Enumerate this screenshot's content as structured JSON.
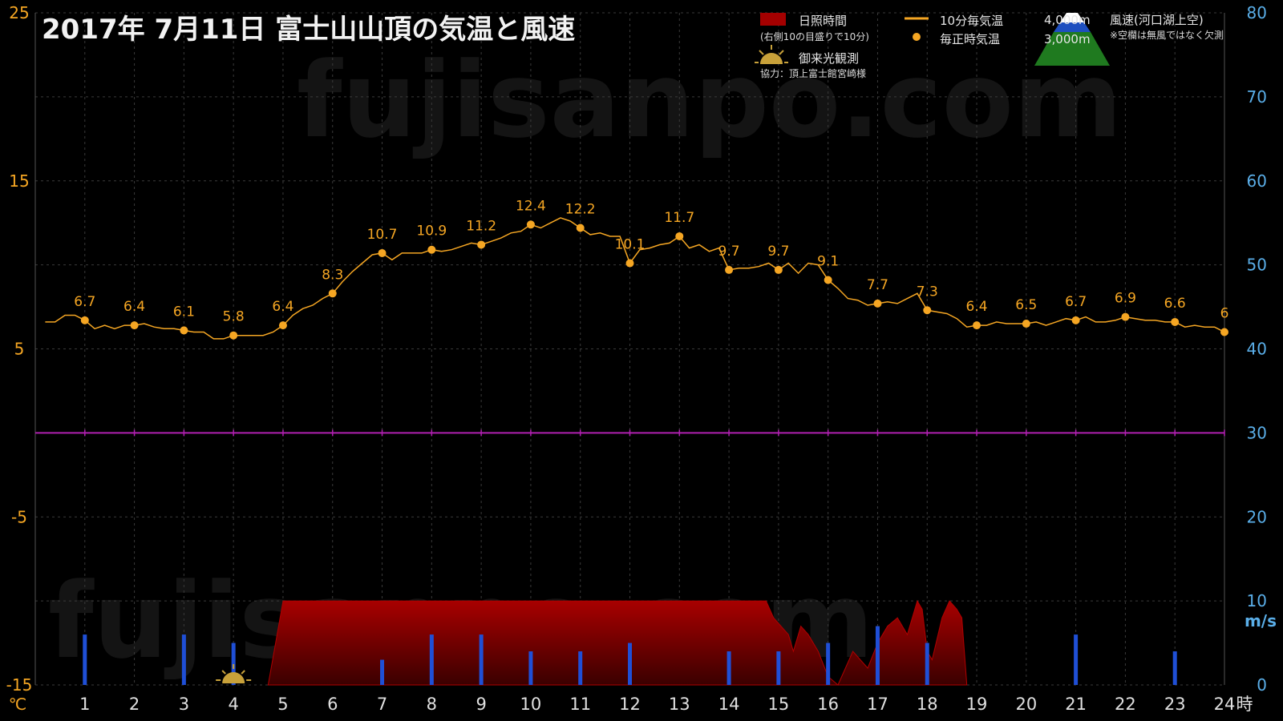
{
  "chart_data": {
    "type": "line",
    "title": "2017年  7月11日   富士山山頂の気温と風速",
    "left_axis": {
      "unit": "℃",
      "ylim": [
        -15,
        25
      ],
      "ticks": [
        25,
        15,
        5,
        -5,
        -15
      ]
    },
    "right_axis": {
      "unit": "m/s",
      "ylim": [
        0,
        80
      ],
      "ticks": [
        80,
        70,
        60,
        50,
        40,
        30,
        20,
        10,
        0
      ]
    },
    "x_axis": {
      "ticks": [
        1,
        2,
        3,
        4,
        5,
        6,
        7,
        8,
        9,
        10,
        11,
        12,
        13,
        14,
        15,
        16,
        17,
        18,
        19,
        20,
        21,
        22,
        23,
        24
      ],
      "unit": "時",
      "xlim": [
        0,
        24
      ]
    },
    "grid": true,
    "zero_line": 0,
    "legend": {
      "sunshine": "日照時間",
      "sunshine_note": "(右側10の目盛りで10分)",
      "temp10": "10分毎気温",
      "temp_hourly": "毎正時気温",
      "sunrise": "御来光観測",
      "credit": "協力：頂上富士館宮崎様",
      "alt_4000": "4,000m",
      "alt_3000": "3,000m",
      "wind_title": "風速(河口湖上空)",
      "wind_note": "※空欄は無風ではなく欠測"
    },
    "watermark": "fujisanpo.com",
    "series": [
      {
        "name": "毎正時気温",
        "x": [
          1,
          2,
          3,
          4,
          5,
          6,
          7,
          8,
          9,
          10,
          11,
          12,
          13,
          14,
          15,
          16,
          17,
          18,
          19,
          20,
          21,
          22,
          23,
          24
        ],
        "values": [
          6.7,
          6.4,
          6.1,
          5.8,
          6.4,
          8.3,
          10.7,
          10.9,
          11.2,
          12.4,
          12.2,
          10.1,
          11.7,
          9.7,
          9.7,
          9.1,
          7.7,
          7.3,
          6.4,
          6.5,
          6.7,
          6.9,
          6.6,
          6
        ],
        "labels": [
          "6.7",
          "6.4",
          "6.1",
          "5.8",
          "6.4",
          "8.3",
          "10.7",
          "10.9",
          "11.2",
          "12.4",
          "12.2",
          "10.1",
          "11.7",
          "9.7",
          "9.7",
          "9.1",
          "7.7",
          "7.3",
          "6.4",
          "6.5",
          "6.7",
          "6.9",
          "6.6",
          "6"
        ]
      },
      {
        "name": "10分毎気温",
        "x": [
          0.2,
          0.4,
          0.6,
          0.8,
          1,
          1.2,
          1.4,
          1.6,
          1.8,
          2,
          2.2,
          2.4,
          2.6,
          2.8,
          3,
          3.2,
          3.4,
          3.6,
          3.8,
          4,
          4.2,
          4.4,
          4.6,
          4.8,
          5,
          5.2,
          5.4,
          5.6,
          5.8,
          6,
          6.2,
          6.4,
          6.6,
          6.8,
          7,
          7.2,
          7.4,
          7.6,
          7.8,
          8,
          8.2,
          8.4,
          8.6,
          8.8,
          9,
          9.2,
          9.4,
          9.6,
          9.8,
          10,
          10.2,
          10.4,
          10.6,
          10.8,
          11,
          11.2,
          11.4,
          11.6,
          11.8,
          12,
          12.2,
          12.4,
          12.6,
          12.8,
          13,
          13.2,
          13.4,
          13.6,
          13.8,
          14,
          14.2,
          14.4,
          14.6,
          14.8,
          15,
          15.2,
          15.4,
          15.6,
          15.8,
          16,
          16.2,
          16.4,
          16.6,
          16.8,
          17,
          17.2,
          17.4,
          17.6,
          17.8,
          18,
          18.2,
          18.4,
          18.6,
          18.8,
          19,
          19.2,
          19.4,
          19.6,
          19.8,
          20,
          20.2,
          20.4,
          20.6,
          20.8,
          21,
          21.2,
          21.4,
          21.6,
          21.8,
          22,
          22.2,
          22.4,
          22.6,
          22.8,
          23,
          23.2,
          23.4,
          23.6,
          23.8,
          24
        ],
        "values": [
          6.6,
          6.6,
          7.0,
          7.0,
          6.7,
          6.2,
          6.4,
          6.2,
          6.4,
          6.4,
          6.5,
          6.3,
          6.2,
          6.2,
          6.1,
          6.0,
          6.0,
          5.6,
          5.6,
          5.8,
          5.8,
          5.8,
          5.8,
          6.0,
          6.4,
          7.0,
          7.4,
          7.6,
          8.0,
          8.3,
          9.0,
          9.6,
          10.1,
          10.6,
          10.7,
          10.3,
          10.7,
          10.7,
          10.7,
          10.9,
          10.8,
          10.9,
          11.1,
          11.3,
          11.2,
          11.4,
          11.6,
          11.9,
          12.0,
          12.4,
          12.2,
          12.5,
          12.8,
          12.6,
          12.2,
          11.8,
          11.9,
          11.7,
          11.7,
          10.1,
          10.9,
          11.0,
          11.2,
          11.3,
          11.7,
          11.0,
          11.2,
          10.8,
          11.0,
          9.7,
          9.8,
          9.8,
          9.9,
          10.1,
          9.7,
          10.1,
          9.5,
          10.1,
          10.0,
          9.1,
          8.6,
          8.0,
          7.9,
          7.6,
          7.7,
          7.8,
          7.7,
          8.0,
          8.3,
          7.3,
          7.2,
          7.1,
          6.8,
          6.3,
          6.4,
          6.4,
          6.6,
          6.5,
          6.5,
          6.5,
          6.6,
          6.4,
          6.6,
          6.8,
          6.7,
          6.9,
          6.6,
          6.6,
          6.7,
          6.9,
          6.8,
          6.7,
          6.7,
          6.6,
          6.6,
          6.3,
          6.4,
          6.3,
          6.3,
          6.0
        ]
      },
      {
        "name": "日照時間",
        "x": [
          4.7,
          5.0,
          5.5,
          6,
          7,
          8,
          9,
          10,
          11,
          12,
          13,
          14,
          14.5,
          14.75,
          14.9,
          15.2,
          15.3,
          15.45,
          15.6,
          15.8,
          16.0,
          16.2,
          16.5,
          16.8,
          17.0,
          17.2,
          17.4,
          17.6,
          17.8,
          17.9,
          18.0,
          18.1,
          18.3,
          18.45,
          18.6,
          18.7,
          18.8
        ],
        "values": [
          0,
          10,
          10,
          10,
          10,
          10,
          10,
          10,
          10,
          10,
          10,
          10,
          10,
          10,
          8,
          6,
          4,
          7,
          6,
          4,
          1,
          0,
          4,
          2,
          5,
          7,
          8,
          6,
          10,
          9,
          4,
          3,
          8,
          10,
          9,
          8,
          0
        ]
      },
      {
        "name": "風速(河口湖上空)",
        "x": [
          1,
          3,
          4,
          7,
          8,
          9,
          10,
          11,
          12,
          14,
          15,
          16,
          17,
          18,
          21,
          23
        ],
        "values": [
          6,
          6,
          5,
          3,
          6,
          6,
          4,
          4,
          5,
          4,
          4,
          5,
          7,
          5,
          6,
          4
        ]
      }
    ],
    "sunrise_marker": {
      "x": 4
    }
  }
}
